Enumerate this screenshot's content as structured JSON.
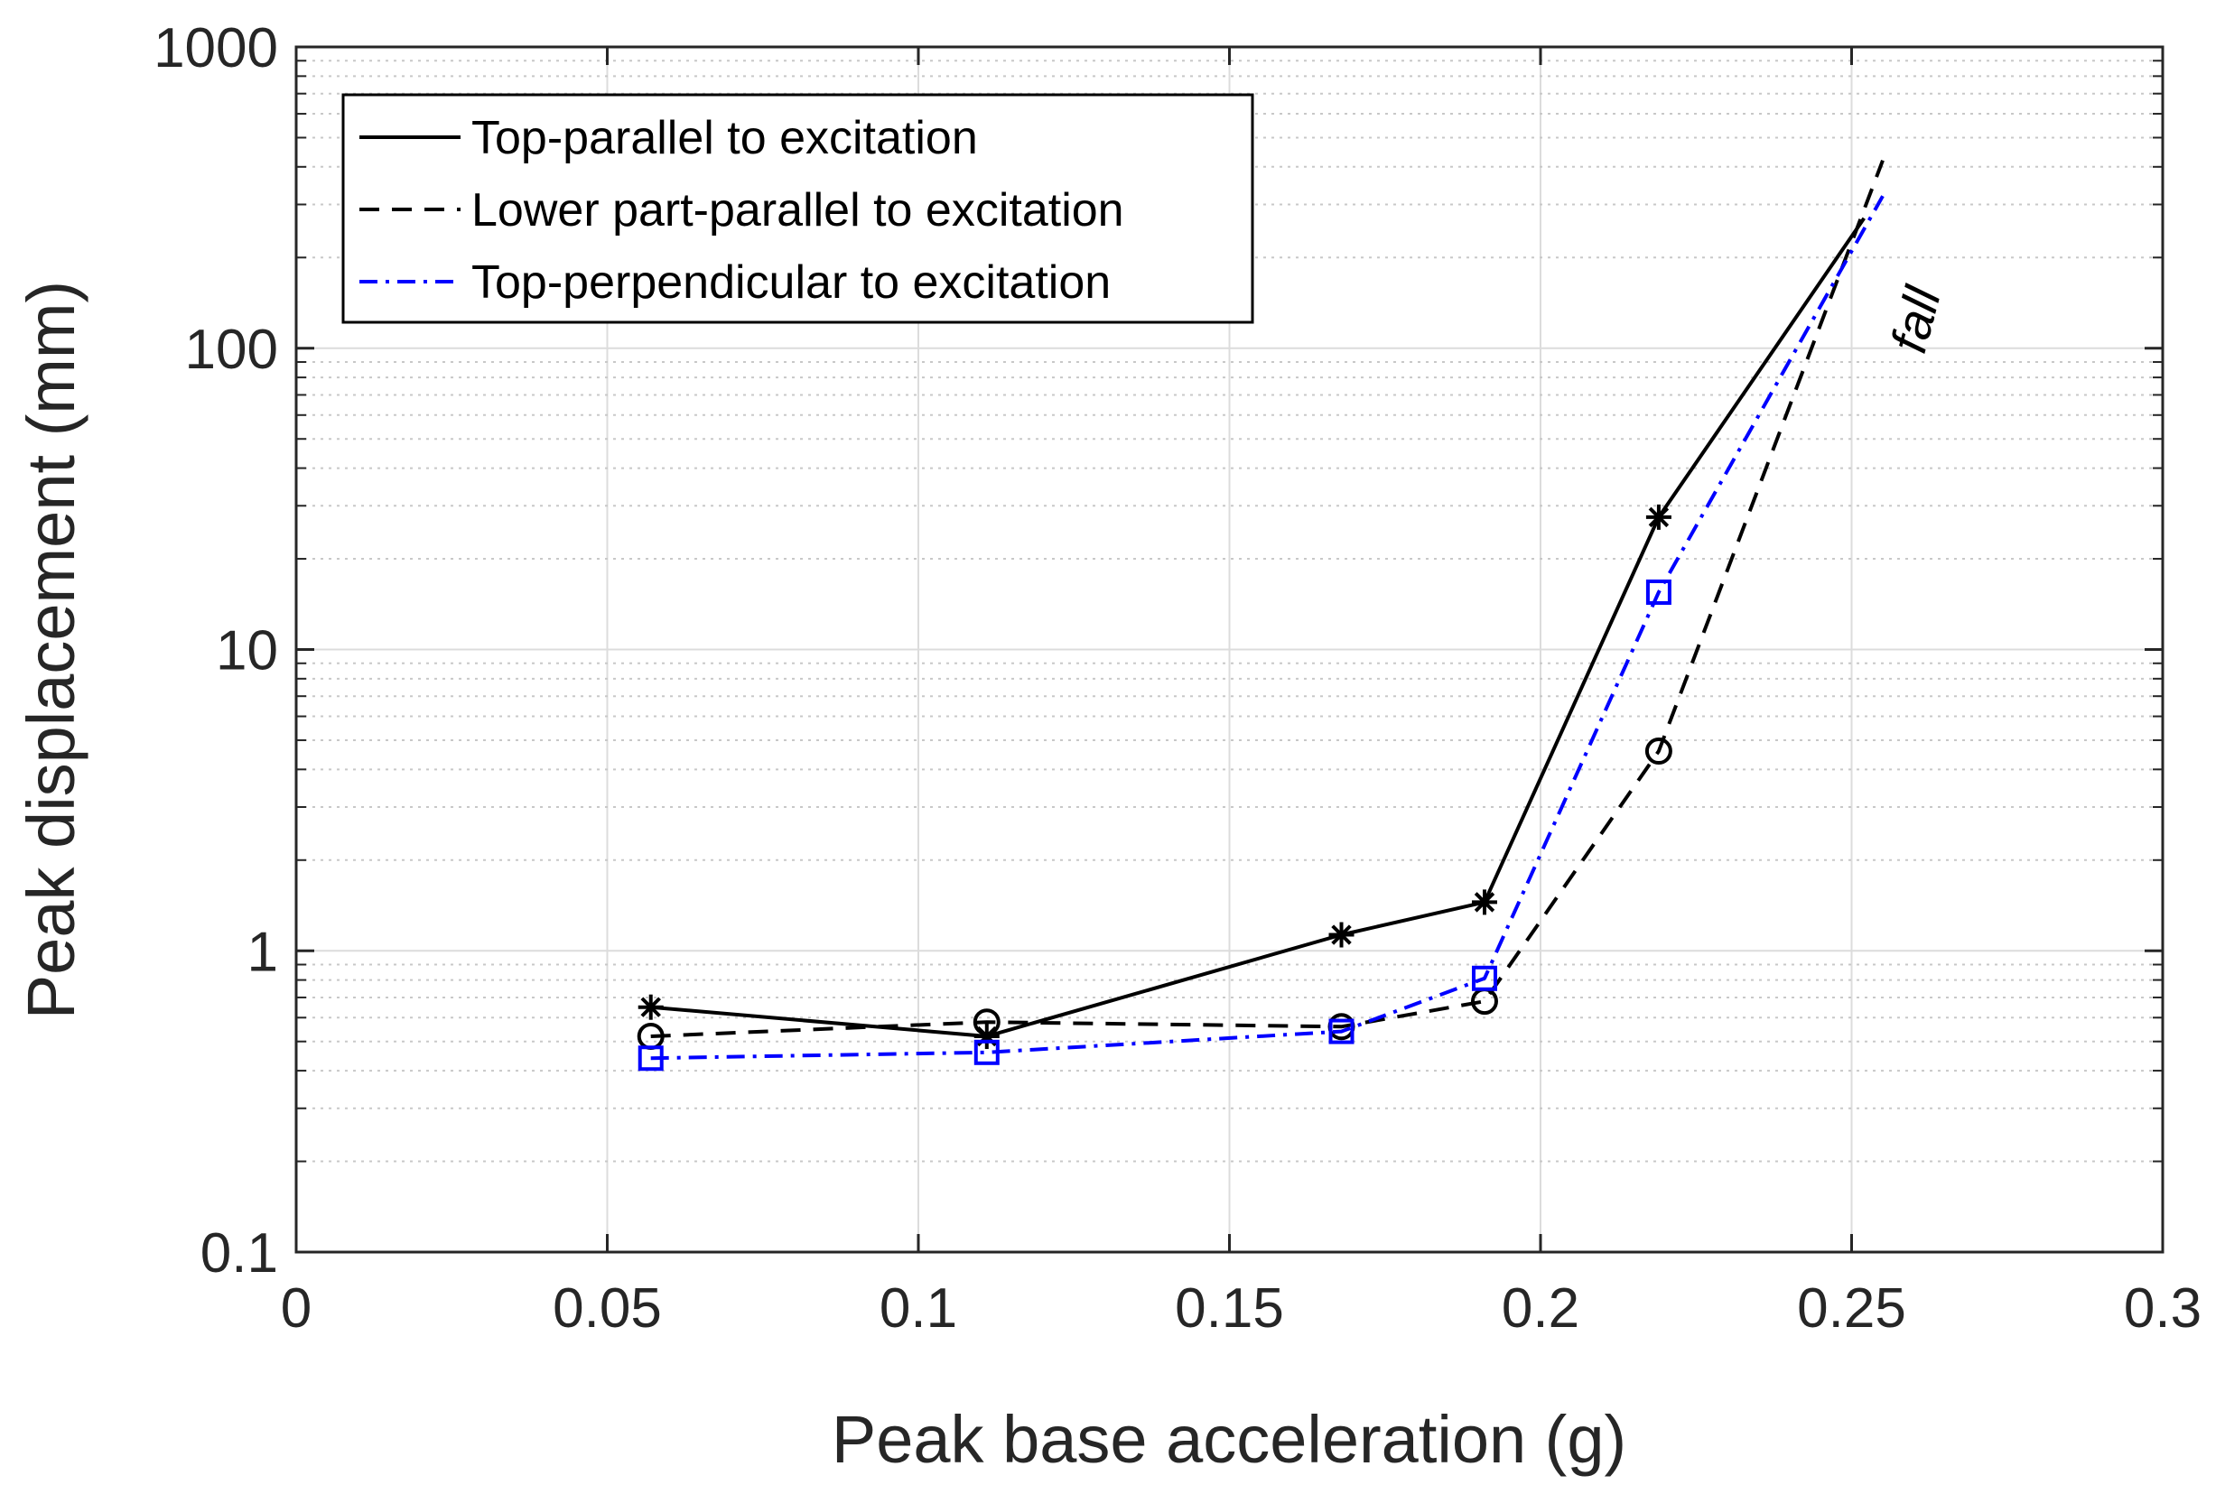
{
  "chart_data": {
    "type": "line",
    "title": "",
    "xlabel": "Peak base acceleration (g)",
    "ylabel": "Peak displacement (mm)",
    "xlim": [
      0,
      0.3
    ],
    "ylim": [
      0.1,
      1000
    ],
    "yscale": "log",
    "grid": true,
    "legend_position": "top-left",
    "x_ticks": [
      0,
      0.05,
      0.1,
      0.15,
      0.2,
      0.25,
      0.3
    ],
    "x_tick_labels": [
      "0",
      "0.05",
      "0.1",
      "0.15",
      "0.2",
      "0.25",
      "0.3"
    ],
    "y_ticks": [
      0.1,
      1,
      10,
      100,
      1000
    ],
    "y_tick_labels": [
      "0.1",
      "1",
      "10",
      "100",
      "1000"
    ],
    "series": [
      {
        "name": "Top-parallel to excitation",
        "color": "#000000",
        "line_style": "solid",
        "marker": "asterisk",
        "x": [
          0.057,
          0.111,
          0.168,
          0.191,
          0.219,
          0.252
        ],
        "y": [
          0.65,
          0.52,
          1.13,
          1.45,
          27.5,
          270
        ],
        "marker_count": 5
      },
      {
        "name": "Lower part-parallel to excitation",
        "color": "#000000",
        "line_style": "dashed",
        "marker": "circle",
        "x": [
          0.057,
          0.111,
          0.168,
          0.191,
          0.219,
          0.255
        ],
        "y": [
          0.52,
          0.58,
          0.56,
          0.68,
          4.6,
          420
        ],
        "marker_count": 5
      },
      {
        "name": "Top-perpendicular to excitation",
        "color": "#0000ff",
        "line_style": "dashdot",
        "marker": "square",
        "x": [
          0.057,
          0.111,
          0.168,
          0.191,
          0.219,
          0.255
        ],
        "y": [
          0.44,
          0.46,
          0.54,
          0.81,
          15.5,
          320
        ],
        "marker_count": 5
      }
    ],
    "annotations": [
      {
        "text": "fall",
        "x": 0.263,
        "y": 120,
        "rotation_deg": -75
      }
    ]
  }
}
